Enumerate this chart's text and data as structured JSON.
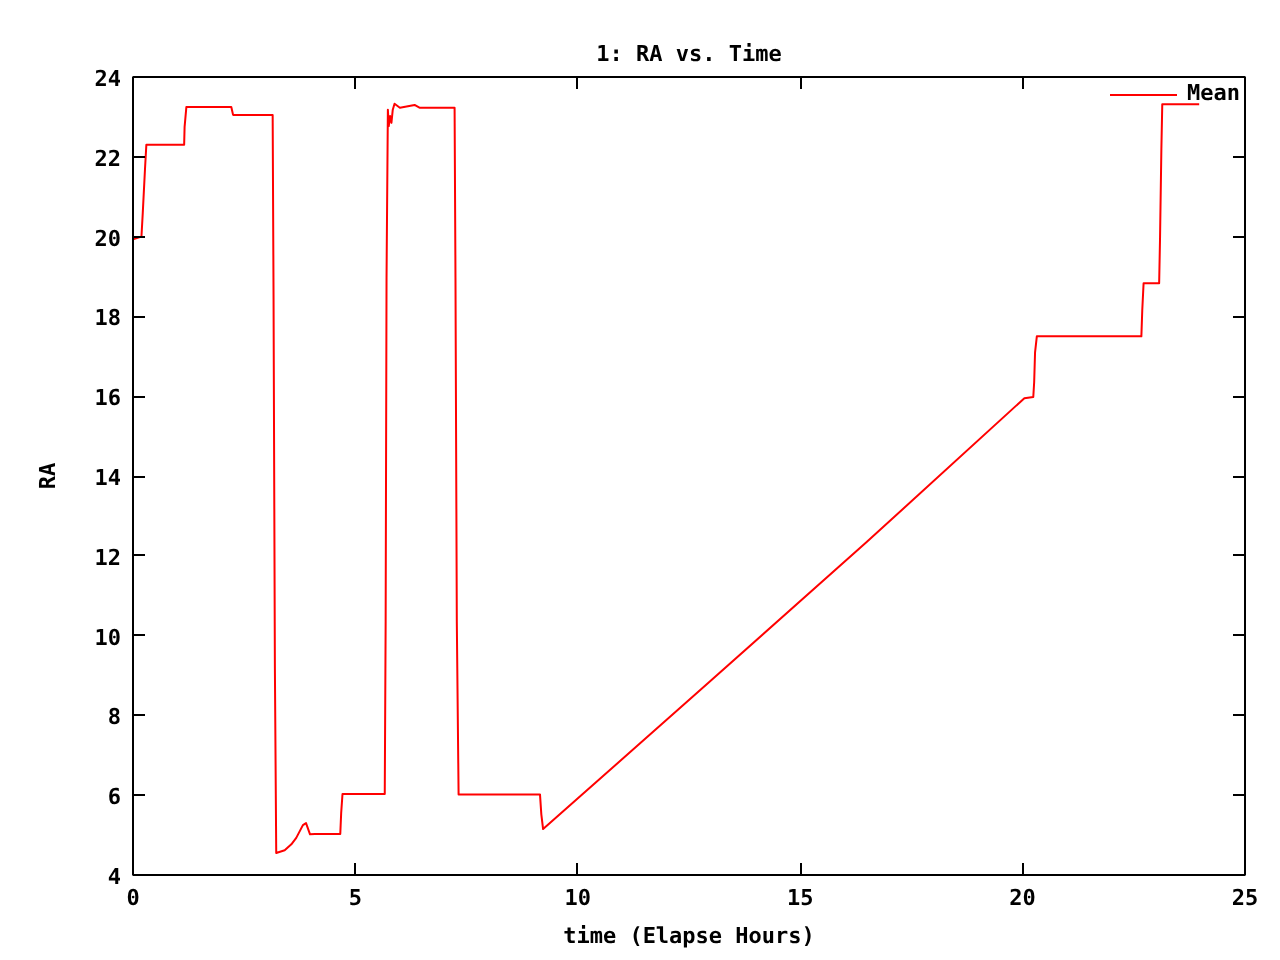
{
  "chart_data": {
    "type": "line",
    "title": "1: RA vs. Time",
    "xlabel": "time (Elapse Hours)",
    "ylabel": "RA",
    "x": [
      0.0,
      0.19,
      0.22,
      0.27,
      0.3,
      1.15,
      1.16,
      1.2,
      2.21,
      2.25,
      3.14,
      3.16,
      3.19,
      3.22,
      3.41,
      3.56,
      3.67,
      3.82,
      3.89,
      3.98,
      4.09,
      4.66,
      4.68,
      4.71,
      5.66,
      5.68,
      5.7,
      5.73,
      5.75,
      5.78,
      5.81,
      5.84,
      5.88,
      6.0,
      6.33,
      6.44,
      7.23,
      7.25,
      7.28,
      7.32,
      9.15,
      9.18,
      9.22,
      13.0,
      16.5,
      20.04,
      20.24,
      20.26,
      20.28,
      20.32,
      22.67,
      22.69,
      22.72,
      23.07,
      23.09,
      23.12,
      23.14,
      23.97
    ],
    "series": [
      {
        "name": "Mean",
        "color": "#ff0000",
        "values": [
          19.93,
          20.0,
          20.6,
          21.7,
          22.3,
          22.3,
          22.75,
          23.25,
          23.25,
          23.05,
          23.05,
          18.43,
          9.18,
          4.55,
          4.62,
          4.77,
          4.93,
          5.25,
          5.3,
          5.02,
          5.03,
          5.03,
          5.55,
          6.03,
          6.03,
          10.35,
          18.97,
          23.18,
          22.77,
          23.02,
          22.85,
          23.18,
          23.33,
          23.23,
          23.3,
          23.23,
          23.23,
          18.97,
          10.35,
          6.02,
          6.02,
          5.52,
          5.15,
          8.88,
          12.35,
          15.95,
          15.98,
          16.35,
          17.1,
          17.5,
          17.5,
          18.15,
          18.83,
          18.83,
          19.97,
          22.2,
          23.32,
          23.32
        ]
      }
    ],
    "xlim": [
      0,
      25
    ],
    "ylim": [
      4,
      24
    ],
    "xticks": [
      0,
      5,
      10,
      15,
      20,
      25
    ],
    "yticks": [
      4,
      6,
      8,
      10,
      12,
      14,
      16,
      18,
      20,
      22,
      24
    ],
    "legend": "top right",
    "line_style": "solid"
  }
}
